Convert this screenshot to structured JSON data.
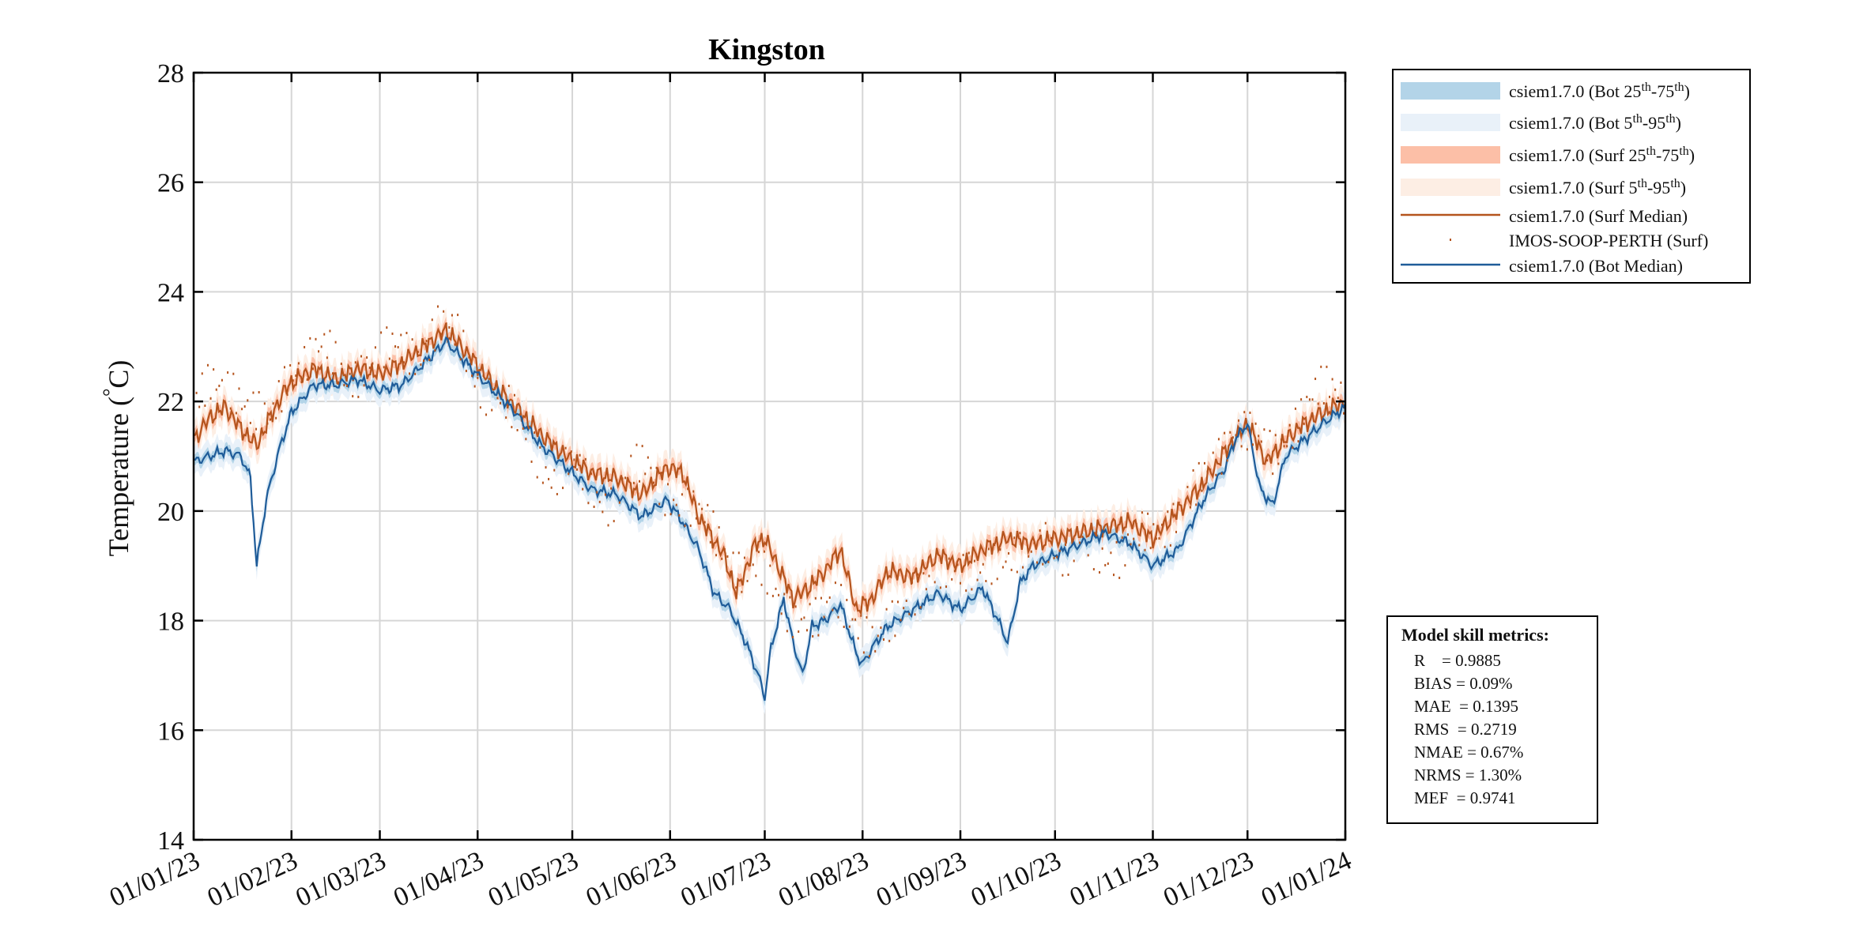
{
  "chart_data": {
    "type": "line",
    "title": "Kingston",
    "ylabel": "Temperature (°C)",
    "ylabel_main": "Temperature (",
    "ylabel_sup": "°",
    "ylabel_unit": "C)",
    "ylim": [
      14,
      28
    ],
    "yticks": [
      14,
      16,
      18,
      20,
      22,
      24,
      26,
      28
    ],
    "xlim": [
      "01/01/23",
      "01/01/24"
    ],
    "xticks": [
      "01/01/23",
      "01/02/23",
      "01/03/23",
      "01/04/23",
      "01/05/23",
      "01/06/23",
      "01/07/23",
      "01/08/23",
      "01/09/23",
      "01/10/23",
      "01/11/23",
      "01/12/23",
      "01/01/24"
    ],
    "xtick_days": [
      0,
      31,
      59,
      90,
      120,
      151,
      181,
      212,
      243,
      273,
      304,
      334,
      365
    ],
    "grid": true,
    "legend_placement": "outside-top-right",
    "legend": [
      {
        "kind": "band",
        "color": "#b3d4e8",
        "base": "csiem1.7.0 (Bot 25",
        "sup1": "th",
        "mid": "-75",
        "sup2": "th",
        "end": ")"
      },
      {
        "kind": "band",
        "color": "#e9f1f9",
        "base": "csiem1.7.0 (Bot 5",
        "sup1": "th",
        "mid": "-95",
        "sup2": "th",
        "end": ")"
      },
      {
        "kind": "band",
        "color": "#fcbfa7",
        "base": "csiem1.7.0 (Surf 25",
        "sup1": "th",
        "mid": "-75",
        "sup2": "th",
        "end": ")"
      },
      {
        "kind": "band",
        "color": "#fdeee4",
        "base": "csiem1.7.0 (Surf 5",
        "sup1": "th",
        "mid": "-95",
        "sup2": "th",
        "end": ")"
      },
      {
        "kind": "line",
        "color": "#b5541d",
        "base": "csiem1.7.0 (Surf Median)"
      },
      {
        "kind": "dot",
        "color": "#b5541d",
        "base": "IMOS-SOOP-PERTH (Surf)"
      },
      {
        "kind": "line",
        "color": "#1f5c99",
        "base": "csiem1.7.0 (Bot Median)"
      }
    ],
    "colors": {
      "surf_median": "#b5541d",
      "bot_median": "#1f5c99",
      "obs": "#b5541d",
      "bot_band": "#b3d4e8",
      "surf_band": "#fcbfa7"
    },
    "series": [
      {
        "name": "csiem1.7.0 (Surf Median)",
        "x_day": [
          0,
          5,
          10,
          15,
          20,
          25,
          30,
          38,
          45,
          52,
          59,
          66,
          73,
          80,
          88,
          95,
          102,
          110,
          118,
          126,
          134,
          142,
          150,
          155,
          160,
          168,
          172,
          178,
          181,
          186,
          190,
          195,
          200,
          205,
          210,
          215,
          220,
          228,
          236,
          243,
          250,
          258,
          266,
          273,
          281,
          289,
          297,
          304,
          312,
          320,
          327,
          334,
          340,
          346,
          352,
          358,
          365
        ],
        "values": [
          21.3,
          21.7,
          21.9,
          21.5,
          21.2,
          21.8,
          22.3,
          22.6,
          22.4,
          22.6,
          22.5,
          22.7,
          23.0,
          23.3,
          22.8,
          22.3,
          21.9,
          21.4,
          21.0,
          20.7,
          20.6,
          20.3,
          20.8,
          20.7,
          19.9,
          19.2,
          18.5,
          19.4,
          19.5,
          18.9,
          18.4,
          18.6,
          18.9,
          19.3,
          18.2,
          18.4,
          18.9,
          18.8,
          19.2,
          19.0,
          19.3,
          19.5,
          19.4,
          19.5,
          19.6,
          19.7,
          19.8,
          19.5,
          20.0,
          20.5,
          21.1,
          21.6,
          20.9,
          21.3,
          21.6,
          21.8,
          22.0
        ]
      },
      {
        "name": "csiem1.7.0 (Bot Median)",
        "x_day": [
          0,
          5,
          10,
          15,
          18,
          20,
          23,
          27,
          31,
          38,
          45,
          52,
          59,
          66,
          73,
          80,
          88,
          95,
          102,
          110,
          118,
          126,
          134,
          142,
          150,
          155,
          160,
          165,
          170,
          175,
          179,
          181,
          183,
          187,
          190,
          193,
          196,
          200,
          205,
          210,
          212,
          215,
          220,
          228,
          236,
          243,
          250,
          255,
          258,
          262,
          266,
          273,
          281,
          289,
          297,
          304,
          312,
          320,
          327,
          330,
          334,
          338,
          342,
          346,
          352,
          358,
          365
        ],
        "values": [
          20.9,
          21.0,
          21.1,
          21.0,
          20.6,
          19.0,
          20.2,
          21.1,
          21.8,
          22.3,
          22.3,
          22.4,
          22.2,
          22.3,
          22.7,
          23.1,
          22.6,
          22.2,
          21.8,
          21.2,
          20.8,
          20.4,
          20.3,
          19.9,
          20.2,
          19.8,
          19.3,
          18.5,
          18.2,
          17.6,
          17.0,
          16.6,
          17.5,
          18.4,
          17.6,
          17.0,
          17.9,
          18.0,
          18.3,
          17.4,
          17.2,
          17.5,
          17.9,
          18.2,
          18.5,
          18.2,
          18.6,
          18.0,
          17.6,
          18.7,
          19.0,
          19.2,
          19.4,
          19.6,
          19.4,
          19.0,
          19.3,
          20.2,
          20.8,
          21.3,
          21.6,
          20.4,
          20.1,
          21.0,
          21.3,
          21.6,
          21.9
        ]
      },
      {
        "name": "IMOS-SOOP-PERTH (Surf)",
        "x_day": [
          0,
          6,
          12,
          18,
          24,
          30,
          36,
          42,
          48,
          54,
          60,
          66,
          72,
          78,
          84,
          90,
          96,
          102,
          108,
          114,
          120,
          126,
          132,
          138,
          144,
          150,
          156,
          162,
          168,
          174,
          180,
          186,
          192,
          198,
          204,
          210,
          216,
          222,
          228,
          234,
          240,
          246,
          252,
          258,
          264,
          270,
          276,
          282,
          288,
          294,
          300,
          306,
          312,
          318,
          324,
          330,
          336,
          342,
          348,
          354,
          360
        ],
        "values": [
          21.8,
          22.3,
          22.4,
          21.8,
          21.5,
          22.6,
          22.8,
          22.9,
          22.4,
          22.7,
          22.8,
          23.0,
          22.9,
          23.4,
          23.1,
          22.4,
          22.1,
          21.6,
          21.2,
          20.6,
          20.8,
          20.4,
          20.2,
          20.6,
          20.8,
          20.4,
          20.0,
          19.8,
          19.4,
          18.9,
          18.8,
          18.4,
          18.1,
          17.9,
          18.4,
          18.1,
          17.5,
          17.9,
          18.6,
          18.9,
          18.7,
          19.0,
          19.1,
          18.9,
          19.3,
          19.6,
          18.9,
          19.5,
          19.3,
          19.1,
          19.5,
          19.7,
          20.0,
          20.3,
          21.0,
          21.6,
          21.3,
          21.0,
          21.6,
          22.0,
          22.2
        ]
      }
    ],
    "bands": [
      {
        "name": "csiem1.7.0 (Bot 25th-75th)",
        "half_width": 0.1
      },
      {
        "name": "csiem1.7.0 (Bot 5th-95th)",
        "half_width": 0.25
      },
      {
        "name": "csiem1.7.0 (Surf 25th-75th)",
        "half_width": 0.12
      },
      {
        "name": "csiem1.7.0 (Surf 5th-95th)",
        "half_width": 0.28
      }
    ]
  },
  "metrics": {
    "title": "Model skill metrics:",
    "lines": [
      "R    = 0.9885",
      "BIAS = 0.09%",
      "MAE  = 0.1395",
      "RMS  = 0.2719",
      "NMAE = 0.67%",
      "NRMS = 1.30%",
      "MEF  = 0.9741"
    ]
  }
}
